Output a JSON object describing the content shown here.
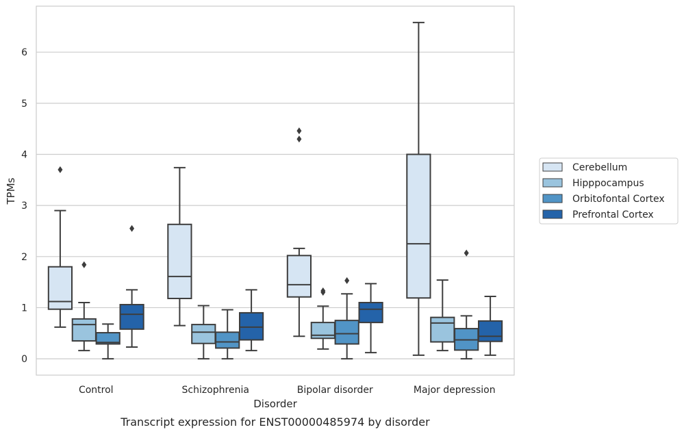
{
  "caption": "Transcript expression for ENST00000485974 by disorder",
  "colors": {
    "series": [
      "#d6e5f3",
      "#9ac4de",
      "#5194c6",
      "#2463a9"
    ],
    "grid": "#cccccc",
    "spine": "#cccccc",
    "line": "#3d3d3d"
  },
  "chart_data": {
    "type": "boxplot",
    "xlabel": "Disorder",
    "ylabel": "TPMs",
    "ylim": [
      -0.32,
      6.9
    ],
    "yticks": [
      0,
      1,
      2,
      3,
      4,
      5,
      6
    ],
    "grid": true,
    "legend_position": "right",
    "categories": [
      "Control",
      "Schizophrenia",
      "Bipolar disorder",
      "Major depression"
    ],
    "series": [
      {
        "name": "Cerebellum",
        "boxes": [
          {
            "whislo": 0.62,
            "q1": 0.97,
            "median": 1.12,
            "q3": 1.8,
            "whishi": 2.9,
            "fliers": [
              3.7
            ]
          },
          {
            "whislo": 0.65,
            "q1": 1.18,
            "median": 1.61,
            "q3": 2.63,
            "whishi": 3.74,
            "fliers": []
          },
          {
            "whislo": 0.44,
            "q1": 1.21,
            "median": 1.45,
            "q3": 2.02,
            "whishi": 2.16,
            "fliers": [
              4.3,
              4.46
            ]
          },
          {
            "whislo": 0.07,
            "q1": 1.19,
            "median": 2.25,
            "q3": 4.0,
            "whishi": 6.58,
            "fliers": []
          }
        ]
      },
      {
        "name": "Hipppocampus",
        "boxes": [
          {
            "whislo": 0.16,
            "q1": 0.35,
            "median": 0.67,
            "q3": 0.78,
            "whishi": 1.1,
            "fliers": [
              1.84
            ]
          },
          {
            "whislo": 0.0,
            "q1": 0.3,
            "median": 0.52,
            "q3": 0.67,
            "whishi": 1.04,
            "fliers": []
          },
          {
            "whislo": 0.19,
            "q1": 0.4,
            "median": 0.46,
            "q3": 0.71,
            "whishi": 1.03,
            "fliers": [
              1.3,
              1.33
            ]
          },
          {
            "whislo": 0.16,
            "q1": 0.33,
            "median": 0.7,
            "q3": 0.81,
            "whishi": 1.54,
            "fliers": []
          }
        ]
      },
      {
        "name": "Orbitofontal Cortex",
        "boxes": [
          {
            "whislo": 0.0,
            "q1": 0.29,
            "median": 0.32,
            "q3": 0.51,
            "whishi": 0.68,
            "fliers": []
          },
          {
            "whislo": 0.0,
            "q1": 0.21,
            "median": 0.33,
            "q3": 0.52,
            "whishi": 0.96,
            "fliers": []
          },
          {
            "whislo": 0.0,
            "q1": 0.29,
            "median": 0.49,
            "q3": 0.75,
            "whishi": 1.27,
            "fliers": [
              1.53
            ]
          },
          {
            "whislo": 0.0,
            "q1": 0.17,
            "median": 0.37,
            "q3": 0.59,
            "whishi": 0.84,
            "fliers": [
              2.07
            ]
          }
        ]
      },
      {
        "name": "Prefrontal Cortex",
        "boxes": [
          {
            "whislo": 0.23,
            "q1": 0.58,
            "median": 0.87,
            "q3": 1.06,
            "whishi": 1.35,
            "fliers": [
              2.55
            ]
          },
          {
            "whislo": 0.16,
            "q1": 0.37,
            "median": 0.62,
            "q3": 0.9,
            "whishi": 1.35,
            "fliers": []
          },
          {
            "whislo": 0.12,
            "q1": 0.71,
            "median": 0.97,
            "q3": 1.1,
            "whishi": 1.47,
            "fliers": []
          },
          {
            "whislo": 0.07,
            "q1": 0.34,
            "median": 0.44,
            "q3": 0.74,
            "whishi": 1.22,
            "fliers": []
          }
        ]
      }
    ]
  }
}
